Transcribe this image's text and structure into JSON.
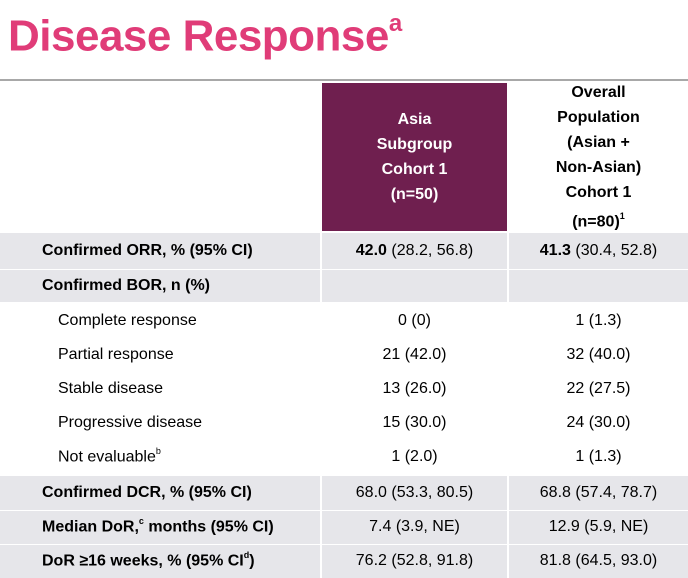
{
  "title": {
    "text": "Disease Response",
    "sup": "a"
  },
  "columns": {
    "asia": [
      "Asia",
      "Subgroup",
      "Cohort 1",
      "(n=50)"
    ],
    "overall": [
      "Overall",
      "Population",
      "(Asian +",
      "Non-Asian)",
      "Cohort 1",
      "(n=80)"
    ],
    "overall_sup": "1"
  },
  "rows": [
    {
      "label": "Confirmed ORR, % (95% CI)",
      "v1_bold": "42.0",
      "v1_rest": " (28.2, 56.8)",
      "v2_bold": "41.3",
      "v2_rest": " (30.4, 52.8)"
    },
    {
      "label": "Confirmed BOR, n (%)"
    },
    {
      "label": "Complete response",
      "v1": "0 (0)",
      "v2": "1 (1.3)"
    },
    {
      "label": "Partial response",
      "v1": "21 (42.0)",
      "v2": "32 (40.0)"
    },
    {
      "label": "Stable disease",
      "v1": "13 (26.0)",
      "v2": "22 (27.5)"
    },
    {
      "label": "Progressive disease",
      "v1": "15 (30.0)",
      "v2": "24 (30.0)"
    },
    {
      "label": "Not evaluable",
      "label_sup": "b",
      "v1": "1 (2.0)",
      "v2": "1 (1.3)"
    },
    {
      "label": "Confirmed DCR, % (95% CI)",
      "v1": "68.0 (53.3, 80.5)",
      "v2": "68.8 (57.4, 78.7)"
    },
    {
      "label_a": "Median DoR,",
      "label_sup": "c",
      "label_b": " months (95% CI)",
      "v1": "7.4 (3.9, NE)",
      "v2": "12.9 (5.9, NE)"
    },
    {
      "label_a": "DoR ≥16 weeks, % (95% CI",
      "label_sup": "d",
      "label_b": ")",
      "v1": "76.2 (52.8, 91.8)",
      "v2": "81.8 (64.5, 93.0)"
    }
  ],
  "colors": {
    "title": "#e03c78",
    "asia_header_bg": "#6f1f4f",
    "row_shade": "#e6e6ea"
  }
}
